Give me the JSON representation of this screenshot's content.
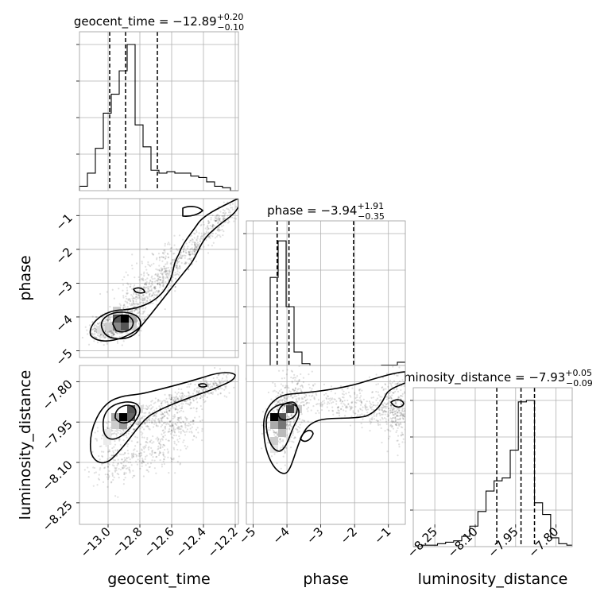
{
  "chart_data": {
    "type": "corner",
    "parameters": [
      "geocent_time",
      "phase",
      "luminosity_distance"
    ],
    "ranges": {
      "geocent_time": [
        -13.18,
        -12.18
      ],
      "phase": [
        -5.2,
        -0.5
      ],
      "luminosity_distance": [
        -8.33,
        -7.74
      ]
    },
    "ticks": {
      "geocent_time": [
        -13.0,
        -12.8,
        -12.6,
        -12.4,
        -12.2
      ],
      "phase": [
        -5,
        -4,
        -3,
        -2,
        -1
      ],
      "luminosity_distance": [
        -8.25,
        -8.1,
        -7.95,
        -7.8
      ]
    },
    "tick_labels": {
      "geocent_time": [
        "−13.0",
        "−12.8",
        "−12.6",
        "−12.4",
        "−12.2"
      ],
      "phase": [
        "−5",
        "−4",
        "−3",
        "−2",
        "−1"
      ],
      "luminosity_distance": [
        "−8.25",
        "−8.10",
        "−7.95",
        "−7.80"
      ]
    },
    "titles": {
      "geocent_time": {
        "name": "geocent_time",
        "median": "−12.89",
        "plus": "+0.20",
        "minus": "−0.10"
      },
      "phase": {
        "name": "phase",
        "median": "−3.94",
        "plus": "+1.91",
        "minus": "−0.35"
      },
      "luminosity_distance": {
        "name": "luminosity_distance",
        "median": "−7.93",
        "plus": "+0.05",
        "minus": "−0.09"
      }
    },
    "quantiles": {
      "geocent_time": [
        -12.99,
        -12.89,
        -12.69
      ],
      "phase": [
        -4.29,
        -3.94,
        -2.03
      ],
      "luminosity_distance": [
        -8.02,
        -7.93,
        -7.88
      ]
    },
    "histograms": {
      "geocent_time": {
        "edges": [
          -13.18,
          -13.13,
          -13.08,
          -13.03,
          -12.98,
          -12.93,
          -12.88,
          -12.83,
          -12.78,
          -12.73,
          -12.68,
          -12.63,
          -12.58,
          -12.53,
          -12.48,
          -12.43,
          -12.38,
          -12.33,
          -12.28,
          -12.23,
          -12.18
        ],
        "counts": [
          0.03,
          0.12,
          0.29,
          0.53,
          0.66,
          0.82,
          1.0,
          0.45,
          0.3,
          0.14,
          0.12,
          0.13,
          0.12,
          0.12,
          0.1,
          0.09,
          0.06,
          0.03,
          0.02,
          0.0
        ]
      },
      "phase": {
        "edges": [
          -5.2,
          -4.965,
          -4.73,
          -4.495,
          -4.26,
          -4.025,
          -3.79,
          -3.555,
          -3.32,
          -3.085,
          -2.85,
          -2.615,
          -2.38,
          -2.145,
          -1.91,
          -1.675,
          -1.44,
          -1.205,
          -0.97,
          -0.735,
          -0.5
        ],
        "counts": [
          0.01,
          0.03,
          0.07,
          0.7,
          0.95,
          0.5,
          0.19,
          0.11,
          0.09,
          0.09,
          0.08,
          0.08,
          0.07,
          0.07,
          0.07,
          0.08,
          0.08,
          0.1,
          0.1,
          0.12
        ]
      },
      "luminosity_distance": {
        "edges": [
          -8.33,
          -8.3,
          -8.27,
          -8.24,
          -8.21,
          -8.18,
          -8.15,
          -8.12,
          -8.09,
          -8.06,
          -8.03,
          -8.0,
          -7.97,
          -7.94,
          -7.91,
          -7.88,
          -7.85,
          -7.82,
          -7.79,
          -7.76,
          -7.74
        ],
        "counts": [
          0.0,
          0.01,
          0.01,
          0.02,
          0.03,
          0.04,
          0.07,
          0.14,
          0.24,
          0.38,
          0.45,
          0.47,
          0.66,
          0.99,
          1.0,
          0.3,
          0.22,
          0.06,
          0.02,
          0.01
        ]
      }
    },
    "pairs": [
      {
        "x": "geocent_time",
        "y": "phase"
      },
      {
        "x": "geocent_time",
        "y": "luminosity_distance"
      },
      {
        "x": "phase",
        "y": "luminosity_distance"
      }
    ],
    "grid": true
  }
}
